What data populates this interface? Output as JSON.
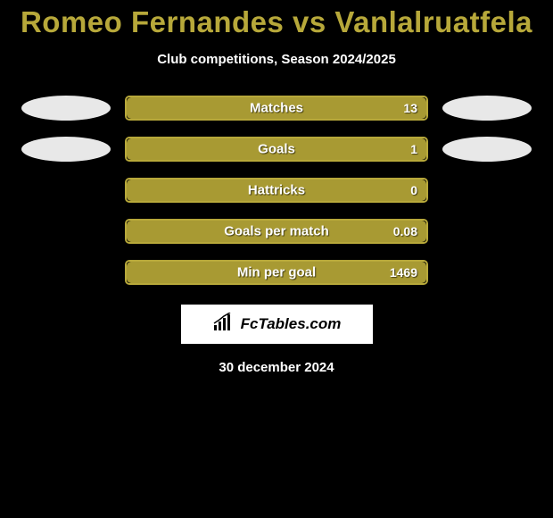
{
  "title": "Romeo Fernandes vs Vanlalruatfela",
  "title_color": "#b7a83a",
  "subtitle": "Club competitions, Season 2024/2025",
  "date": "30 december 2024",
  "logo_text": "FcTables.com",
  "bar_border_color": "#b7a83a",
  "bar_fill_color": "#a89a33",
  "bar_bg_color": "#000000",
  "oval_left_color": "#e8e8e8",
  "oval_right_color": "#e8e8e8",
  "stats": [
    {
      "label": "Matches",
      "left_oval": true,
      "right_oval": true,
      "right_value": "13",
      "left_fill_pct": 0,
      "right_fill_pct": 100
    },
    {
      "label": "Goals",
      "left_oval": true,
      "right_oval": true,
      "right_value": "1",
      "left_fill_pct": 0,
      "right_fill_pct": 100
    },
    {
      "label": "Hattricks",
      "left_oval": false,
      "right_oval": false,
      "right_value": "0",
      "left_fill_pct": 0,
      "right_fill_pct": 100
    },
    {
      "label": "Goals per match",
      "left_oval": false,
      "right_oval": false,
      "right_value": "0.08",
      "left_fill_pct": 0,
      "right_fill_pct": 100
    },
    {
      "label": "Min per goal",
      "left_oval": false,
      "right_oval": false,
      "right_value": "1469",
      "left_fill_pct": 0,
      "right_fill_pct": 100
    }
  ]
}
